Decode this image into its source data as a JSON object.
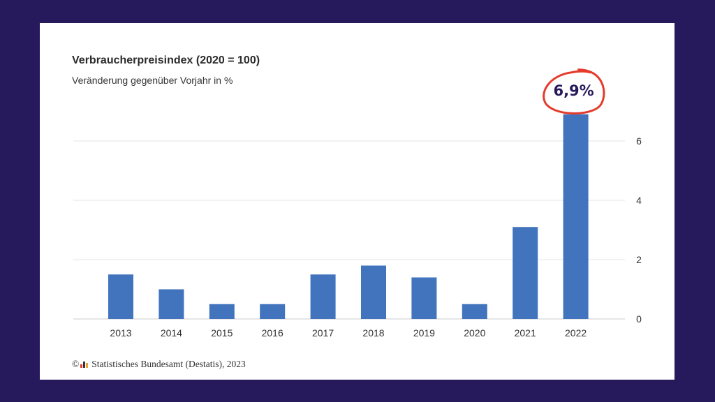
{
  "colors": {
    "background": "#271a5c",
    "bar": "#4174bd",
    "highlight_circle": "#e53b2c",
    "highlight_text": "#271a5c"
  },
  "chart_data": {
    "type": "bar",
    "title": "Verbraucherpreisindex (2020 = 100)",
    "subtitle": "Veränderung gegenüber Vorjahr in %",
    "categories": [
      "2013",
      "2014",
      "2015",
      "2016",
      "2017",
      "2018",
      "2019",
      "2020",
      "2021",
      "2022"
    ],
    "values": [
      1.5,
      1.0,
      0.5,
      0.5,
      1.5,
      1.8,
      1.4,
      0.5,
      3.1,
      6.9
    ],
    "yticks": [
      "0",
      "2",
      "4",
      "6"
    ],
    "ylim": [
      0,
      6.9
    ],
    "y_axis_position": "right",
    "grid": true,
    "annotation": {
      "category": "2022",
      "text": "6,9%"
    }
  },
  "source": {
    "copyright": "©",
    "text": "Statistisches Bundesamt (Destatis), 2023"
  }
}
